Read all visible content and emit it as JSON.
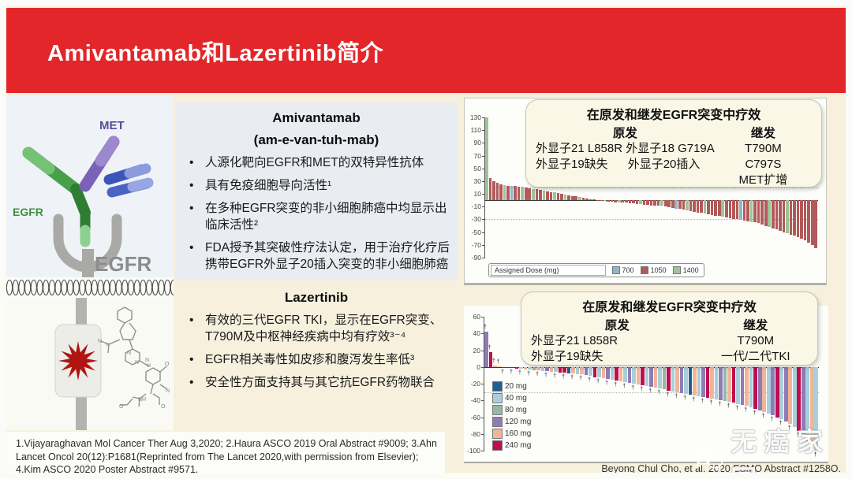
{
  "header": {
    "title": "Amivantamab和Lazertinib简介"
  },
  "diagram": {
    "met_label": "MET",
    "egfr_antibody_label": "EGFR",
    "egfr_receptor_label": "EGFR"
  },
  "amivantamab": {
    "title": "Amivantamab",
    "pronunciation": "(am-e-van-tuh-mab)",
    "bullets": [
      "人源化靶向EGFR和MET的双特异性抗体",
      "具有免疫细胞导向活性¹",
      "在多种EGFR突变的非小细胞肺癌中均显示出临床活性²",
      "FDA授予其突破性疗法认定，用于治疗化疗后携带EGFR外显子20插入突变的非小细胞肺癌"
    ]
  },
  "lazertinib": {
    "title": "Lazertinib",
    "bullets": [
      "有效的三代EGFR TKI，显示在EGFR突变、T790M及中枢神经疾病中均有疗效³⁻⁴",
      "EGFR相关毒性如皮疹和腹泻发生率低³",
      "安全性方面支持其与其它抗EGFR药物联合"
    ]
  },
  "footnote": "1.Vijayaraghavan Mol Cancer Ther Aug 3,2020; 2.Haura ASCO 2019 Oral Abstract #9009; 3.Ahn Lancet Oncol 20(12):P1681(Reprinted from The Lancet 2020,with permission from Elsevier); 4.Kim ASCO 2020 Poster Abstract #9571.",
  "citation": "Beyong Chul Cho, et al. 2020 ESMO Abstract #1258O.",
  "watermark": "无癌家园",
  "chart_data": [
    {
      "type": "bar",
      "name": "amivantamab-waterfall",
      "info_box": {
        "title": "在原发和继发EGFR突变中疗效",
        "primary_header": "原发",
        "secondary_header": "继发",
        "primary_lines": [
          "外显子21 L858R 外显子18 G719A",
          "外显子19缺失      外显子20插入"
        ],
        "secondary_lines": [
          "T790M",
          "C797S",
          "MET扩增"
        ]
      },
      "ylim": [
        -90,
        130
      ],
      "yticks": [
        130,
        110,
        90,
        70,
        50,
        30,
        10,
        -10,
        -30,
        -50,
        -70,
        -90
      ],
      "ref_lines": [
        20,
        -30
      ],
      "legend_label": "Assigned Dose (mg)",
      "legend": [
        {
          "label": "700",
          "key": "700"
        },
        {
          "label": "1050",
          "key": "1050"
        },
        {
          "label": "1400",
          "key": "1400"
        }
      ],
      "dose_colors": {
        "700": "#8fb6c6",
        "1050": "#b25a5a",
        "1400": "#9cc496"
      },
      "bars": [
        [
          130,
          1400
        ],
        [
          35,
          1050
        ],
        [
          30,
          1050
        ],
        [
          27,
          1050
        ],
        [
          25,
          1050
        ],
        [
          24,
          1400
        ],
        [
          23,
          1050
        ],
        [
          22,
          700
        ],
        [
          22,
          1050
        ],
        [
          21,
          1050
        ],
        [
          21,
          1400
        ],
        [
          20,
          1050
        ],
        [
          19,
          1050
        ],
        [
          18,
          1400
        ],
        [
          17,
          1050
        ],
        [
          16,
          1050
        ],
        [
          15,
          1400
        ],
        [
          14,
          1050
        ],
        [
          13,
          1050
        ],
        [
          12,
          1400
        ],
        [
          11,
          1050
        ],
        [
          10,
          1050
        ],
        [
          9,
          1400
        ],
        [
          8,
          1050
        ],
        [
          7,
          1050
        ],
        [
          6,
          1050
        ],
        [
          5,
          1400
        ],
        [
          4,
          1050
        ],
        [
          3,
          1050
        ],
        [
          2,
          1050
        ],
        [
          1,
          1050
        ],
        [
          0,
          1050
        ],
        [
          -1,
          1050
        ],
        [
          -1,
          1400
        ],
        [
          -2,
          1050
        ],
        [
          -2,
          1050
        ],
        [
          -3,
          1050
        ],
        [
          -3,
          1400
        ],
        [
          -4,
          1050
        ],
        [
          -4,
          1050
        ],
        [
          -5,
          1050
        ],
        [
          -5,
          1050
        ],
        [
          -6,
          1050
        ],
        [
          -6,
          1400
        ],
        [
          -7,
          1050
        ],
        [
          -7,
          1050
        ],
        [
          -8,
          1050
        ],
        [
          -8,
          1050
        ],
        [
          -9,
          1050
        ],
        [
          -9,
          1400
        ],
        [
          -10,
          1050
        ],
        [
          -11,
          1050
        ],
        [
          -12,
          1050
        ],
        [
          -13,
          700
        ],
        [
          -14,
          1050
        ],
        [
          -15,
          1050
        ],
        [
          -16,
          1400
        ],
        [
          -17,
          1050
        ],
        [
          -18,
          1050
        ],
        [
          -19,
          1050
        ],
        [
          -20,
          1050
        ],
        [
          -21,
          1400
        ],
        [
          -22,
          1050
        ],
        [
          -23,
          1050
        ],
        [
          -24,
          1050
        ],
        [
          -25,
          1050
        ],
        [
          -26,
          1400
        ],
        [
          -27,
          1050
        ],
        [
          -28,
          1050
        ],
        [
          -29,
          1050
        ],
        [
          -30,
          1050
        ],
        [
          -31,
          700
        ],
        [
          -32,
          1050
        ],
        [
          -33,
          1050
        ],
        [
          -34,
          1400
        ],
        [
          -35,
          1050
        ],
        [
          -36,
          1050
        ],
        [
          -38,
          1050
        ],
        [
          -40,
          1050
        ],
        [
          -42,
          1400
        ],
        [
          -44,
          1050
        ],
        [
          -46,
          1050
        ],
        [
          -48,
          1050
        ],
        [
          -50,
          1050
        ],
        [
          -52,
          1400
        ],
        [
          -54,
          1050
        ],
        [
          -56,
          1050
        ],
        [
          -58,
          1050
        ],
        [
          -60,
          1050
        ],
        [
          -63,
          1050
        ],
        [
          -66,
          1050
        ],
        [
          -70,
          1050
        ],
        [
          -75,
          1050
        ]
      ]
    },
    {
      "type": "bar",
      "name": "lazertinib-waterfall",
      "info_box": {
        "title": "在原发和继发EGFR突变中疗效",
        "primary_header": "原发",
        "secondary_header": "继发",
        "primary_lines": [
          "外显子21 L858R",
          "外显子19缺失"
        ],
        "secondary_lines": [
          "T790M",
          "一代/二代TKI"
        ]
      },
      "ylim": [
        -100,
        60
      ],
      "yticks": [
        60,
        40,
        20,
        0,
        -20,
        -40,
        -60,
        -80,
        -100
      ],
      "ref_lines": [
        -30
      ],
      "legend_label": "",
      "legend": [
        {
          "label": "20 mg",
          "key": "20"
        },
        {
          "label": "40 mg",
          "key": "40"
        },
        {
          "label": "80 mg",
          "key": "80"
        },
        {
          "label": "120 mg",
          "key": "120"
        },
        {
          "label": "160 mg",
          "key": "160"
        },
        {
          "label": "240 mg",
          "key": "240"
        }
      ],
      "dose_colors": {
        "20": "#1f5f96",
        "40": "#a9cfdd",
        "80": "#95b8a8",
        "120": "#8f7bb5",
        "160": "#f2b697",
        "240": "#c00d4e"
      },
      "bars": [
        [
          42,
          120,
          1
        ],
        [
          18,
          240,
          1
        ],
        [
          2,
          160,
          1
        ],
        [
          1,
          160,
          1
        ],
        [
          -1,
          240,
          1
        ],
        [
          -1,
          240,
          0
        ],
        [
          -1,
          240,
          1
        ],
        [
          -2,
          240,
          0
        ],
        [
          -2,
          40,
          1
        ],
        [
          -3,
          160,
          0
        ],
        [
          -3,
          40,
          1
        ],
        [
          -4,
          80,
          0
        ],
        [
          -4,
          160,
          1
        ],
        [
          -5,
          40,
          0
        ],
        [
          -5,
          120,
          1
        ],
        [
          -6,
          160,
          0
        ],
        [
          -6,
          40,
          1
        ],
        [
          -7,
          240,
          0
        ],
        [
          -7,
          240,
          1
        ],
        [
          -8,
          20,
          0
        ],
        [
          -8,
          160,
          1
        ],
        [
          -9,
          40,
          0
        ],
        [
          -9,
          160,
          1
        ],
        [
          -10,
          120,
          0
        ],
        [
          -11,
          40,
          1
        ],
        [
          -12,
          240,
          0
        ],
        [
          -12,
          40,
          1
        ],
        [
          -13,
          160,
          0
        ],
        [
          -14,
          120,
          1
        ],
        [
          -15,
          40,
          0
        ],
        [
          -16,
          240,
          1
        ],
        [
          -17,
          160,
          0
        ],
        [
          -18,
          40,
          1
        ],
        [
          -19,
          120,
          0
        ],
        [
          -20,
          40,
          1
        ],
        [
          -21,
          160,
          0
        ],
        [
          -22,
          240,
          1
        ],
        [
          -23,
          40,
          0
        ],
        [
          -24,
          120,
          1
        ],
        [
          -25,
          160,
          0
        ],
        [
          -26,
          40,
          1
        ],
        [
          -27,
          80,
          0
        ],
        [
          -28,
          240,
          1
        ],
        [
          -29,
          40,
          0
        ],
        [
          -30,
          160,
          1
        ],
        [
          -31,
          120,
          0
        ],
        [
          -32,
          40,
          1
        ],
        [
          -33,
          20,
          0
        ],
        [
          -34,
          160,
          1
        ],
        [
          -35,
          40,
          0
        ],
        [
          -36,
          120,
          1
        ],
        [
          -37,
          240,
          0
        ],
        [
          -38,
          160,
          1
        ],
        [
          -39,
          40,
          0
        ],
        [
          -40,
          120,
          1
        ],
        [
          -41,
          80,
          0
        ],
        [
          -42,
          160,
          1
        ],
        [
          -43,
          240,
          0
        ],
        [
          -44,
          40,
          1
        ],
        [
          -45,
          120,
          0
        ],
        [
          -46,
          160,
          1
        ],
        [
          -48,
          40,
          0
        ],
        [
          -50,
          240,
          1
        ],
        [
          -52,
          120,
          0
        ],
        [
          -54,
          160,
          1
        ],
        [
          -56,
          40,
          0
        ],
        [
          -58,
          120,
          1
        ],
        [
          -60,
          240,
          0
        ],
        [
          -62,
          40,
          1
        ],
        [
          -65,
          120,
          0
        ],
        [
          -68,
          160,
          1
        ],
        [
          -72,
          40,
          0
        ],
        [
          -76,
          240,
          1
        ],
        [
          -80,
          120,
          0
        ],
        [
          -85,
          40,
          1
        ],
        [
          -90,
          160,
          0
        ],
        [
          -100,
          40,
          1
        ]
      ]
    }
  ]
}
